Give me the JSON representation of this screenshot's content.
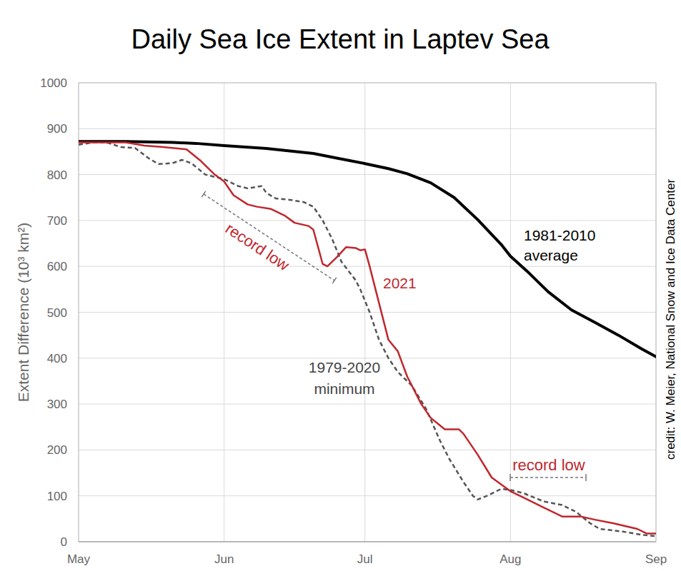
{
  "chart_data": {
    "type": "line",
    "title": "Daily Sea Ice Extent in Laptev Sea",
    "y_label": "Extent Difference (10³ km²)",
    "credit": "credit: W. Meier, National Snow and Ice Data Center",
    "xlim": [
      0,
      123
    ],
    "xticks": [
      {
        "value": 0,
        "label": "May"
      },
      {
        "value": 31,
        "label": "Jun"
      },
      {
        "value": 61,
        "label": "Jul"
      },
      {
        "value": 92,
        "label": "Aug"
      },
      {
        "value": 123,
        "label": "Sep"
      }
    ],
    "ylim": [
      0,
      1000
    ],
    "yticks": [
      0,
      100,
      200,
      300,
      400,
      500,
      600,
      700,
      800,
      900,
      1000
    ],
    "grid": true,
    "series": [
      {
        "name": "1981-2010 average",
        "color": "#000000",
        "line_style": "solid",
        "x": [
          0,
          10,
          20,
          25,
          31,
          40,
          50,
          55,
          61,
          66,
          70,
          75,
          80,
          85,
          90,
          92,
          96,
          100,
          105,
          110,
          115,
          120,
          123
        ],
        "values": [
          872,
          872,
          870,
          868,
          863,
          857,
          846,
          836,
          824,
          813,
          802,
          782,
          750,
          702,
          648,
          622,
          585,
          545,
          505,
          478,
          450,
          420,
          403
        ]
      },
      {
        "name": "2021",
        "color": "#c0272d",
        "line_style": "solid",
        "x": [
          0,
          5,
          10,
          14,
          18,
          23,
          26,
          29,
          31,
          33,
          36,
          38,
          41,
          44,
          46,
          49,
          50,
          52,
          53,
          55,
          57,
          59,
          60,
          61,
          62,
          64,
          66,
          68,
          70,
          73,
          75,
          78,
          81,
          82,
          85,
          88,
          92,
          94,
          99,
          103,
          107,
          110,
          114,
          119,
          121,
          123
        ],
        "values": [
          870,
          870,
          870,
          863,
          860,
          855,
          830,
          800,
          785,
          755,
          735,
          730,
          725,
          710,
          695,
          688,
          680,
          605,
          600,
          620,
          642,
          640,
          635,
          637,
          600,
          520,
          440,
          415,
          360,
          300,
          270,
          245,
          245,
          235,
          190,
          140,
          110,
          100,
          75,
          55,
          55,
          48,
          40,
          28,
          18,
          18
        ]
      },
      {
        "name": "1979-2020 minimum",
        "color": "#555555",
        "line_style": "dashed",
        "x": [
          0,
          3,
          6,
          9,
          12,
          15,
          17,
          20,
          22,
          24,
          27,
          31,
          34,
          36,
          39,
          40,
          42,
          45,
          48,
          50,
          52,
          54,
          56,
          59,
          60,
          62,
          64,
          66,
          68,
          71,
          74,
          77,
          79,
          82,
          84,
          85,
          87,
          90,
          92,
          95,
          99,
          103,
          106,
          109,
          111,
          116,
          120,
          123
        ],
        "values": [
          865,
          870,
          870,
          860,
          858,
          835,
          823,
          825,
          832,
          825,
          800,
          790,
          775,
          770,
          775,
          760,
          748,
          745,
          740,
          730,
          700,
          660,
          610,
          570,
          550,
          500,
          440,
          400,
          370,
          340,
          290,
          220,
          180,
          130,
          100,
          92,
          100,
          115,
          113,
          105,
          88,
          80,
          65,
          40,
          28,
          22,
          15,
          12
        ]
      }
    ],
    "annotations": [
      {
        "text": "record low",
        "color": "#c0272d"
      },
      {
        "text": "record low",
        "color": "#c0272d"
      }
    ]
  }
}
